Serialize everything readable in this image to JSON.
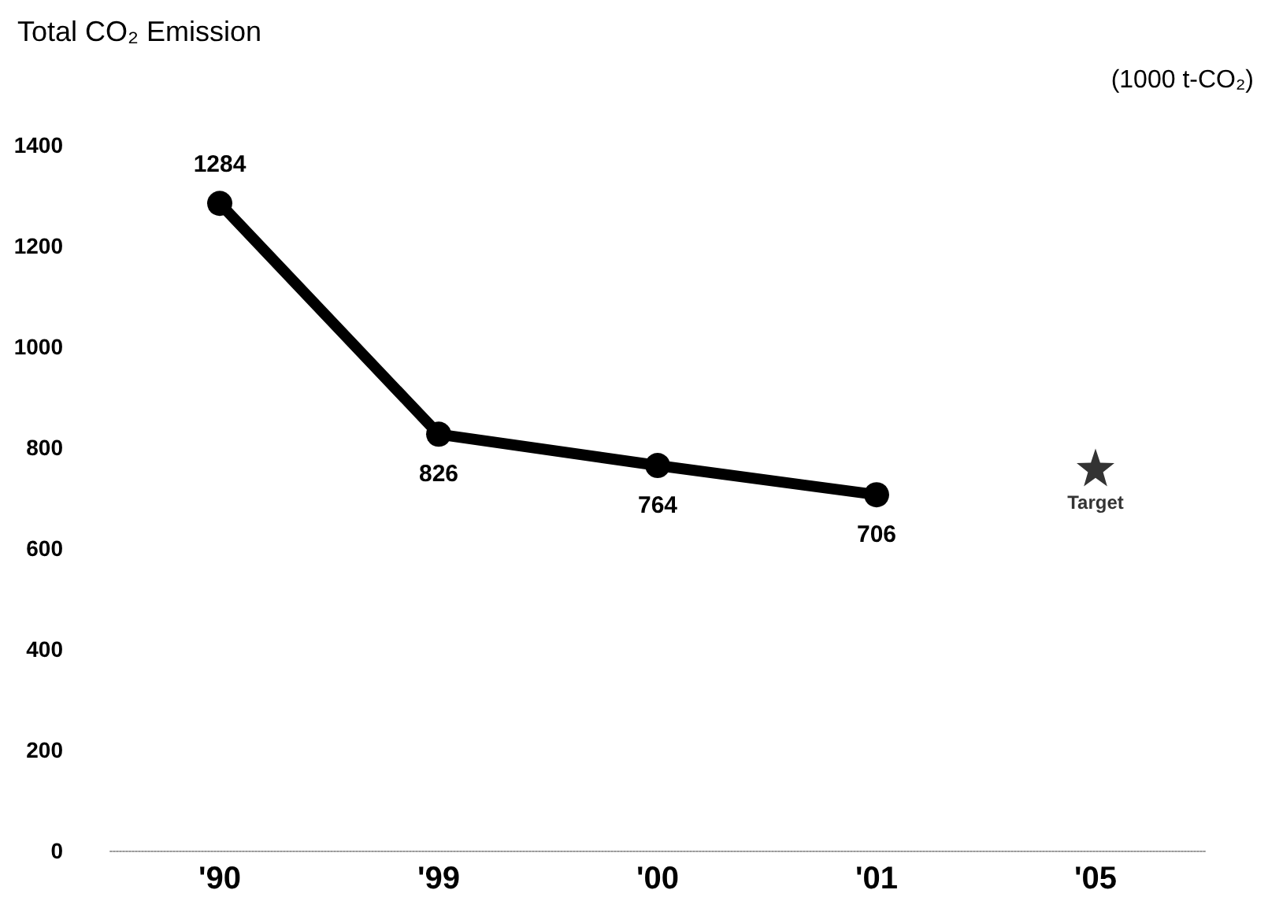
{
  "chart_data": {
    "type": "line",
    "title": "Total CO₂ Emission",
    "ylabel": "(1000 t-CO₂)",
    "categories": [
      "'90",
      "'99",
      "'00",
      "'01",
      "'05"
    ],
    "series": [
      {
        "color": "#000000",
        "marker": "circle",
        "values": [
          1284,
          826,
          764,
          706,
          null
        ],
        "value_labels": [
          "1284",
          "826",
          "764",
          "706",
          null
        ]
      },
      {
        "type": "scatter",
        "name": "Target",
        "color": "#000000",
        "marker": "star",
        "values": [
          null,
          null,
          null,
          null,
          760
        ]
      }
    ],
    "ylim": [
      0,
      1400
    ],
    "yticks": [
      0,
      200,
      400,
      600,
      800,
      1000,
      1200,
      1400
    ],
    "grid": false,
    "legend": false
  }
}
